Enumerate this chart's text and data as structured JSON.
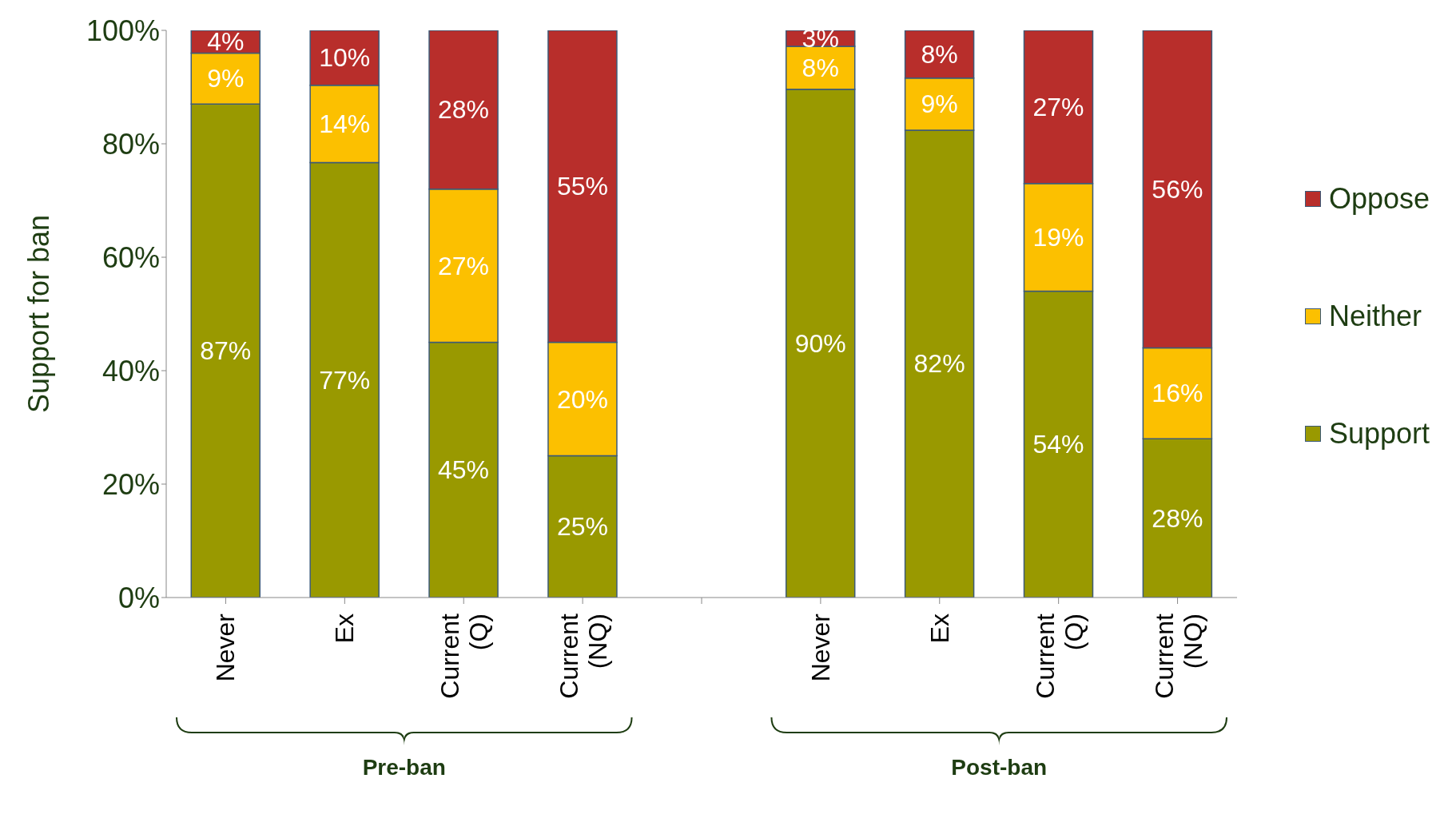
{
  "chart_data": {
    "type": "bar",
    "stacked": true,
    "ylabel": "Support for ban",
    "categories": [
      "Never",
      "Ex",
      "Current (Q)",
      "Current (NQ)",
      null,
      "Never",
      "Ex",
      "Current (Q)",
      "Current (NQ)"
    ],
    "series": [
      {
        "name": "Support",
        "color": "#999900",
        "values": [
          87,
          76.7,
          45,
          25,
          null,
          89.6,
          82.4,
          54,
          28
        ],
        "value_labels": [
          "87%",
          "77%",
          "45%",
          "25%",
          null,
          "90%",
          "82%",
          "54%",
          "28%"
        ]
      },
      {
        "name": "Neither",
        "color": "#fcc000",
        "values": [
          9,
          13.6,
          27,
          20,
          null,
          7.6,
          9.2,
          19,
          16
        ],
        "value_labels": [
          "9%",
          "14%",
          "27%",
          "20%",
          null,
          "8%",
          "9%",
          "19%",
          "16%"
        ]
      },
      {
        "name": "Oppose",
        "color": "#b82e2b",
        "values": [
          4,
          9.7,
          28,
          55,
          null,
          2.8,
          8.4,
          27,
          56
        ],
        "value_labels": [
          "4%",
          "10%",
          "28%",
          "55%",
          null,
          "3%",
          "8%",
          "27%",
          "56%"
        ]
      }
    ],
    "ylim": [
      0,
      100
    ],
    "yticks": [
      {
        "value": 0,
        "label": "0%"
      },
      {
        "value": 20,
        "label": "20%"
      },
      {
        "value": 40,
        "label": "40%"
      },
      {
        "value": 60,
        "label": "60%"
      },
      {
        "value": 80,
        "label": "80%"
      },
      {
        "value": 100,
        "label": "100%"
      }
    ],
    "grid": false,
    "legend": "right",
    "annotations": [
      "Pre-ban",
      "Post-ban"
    ]
  }
}
